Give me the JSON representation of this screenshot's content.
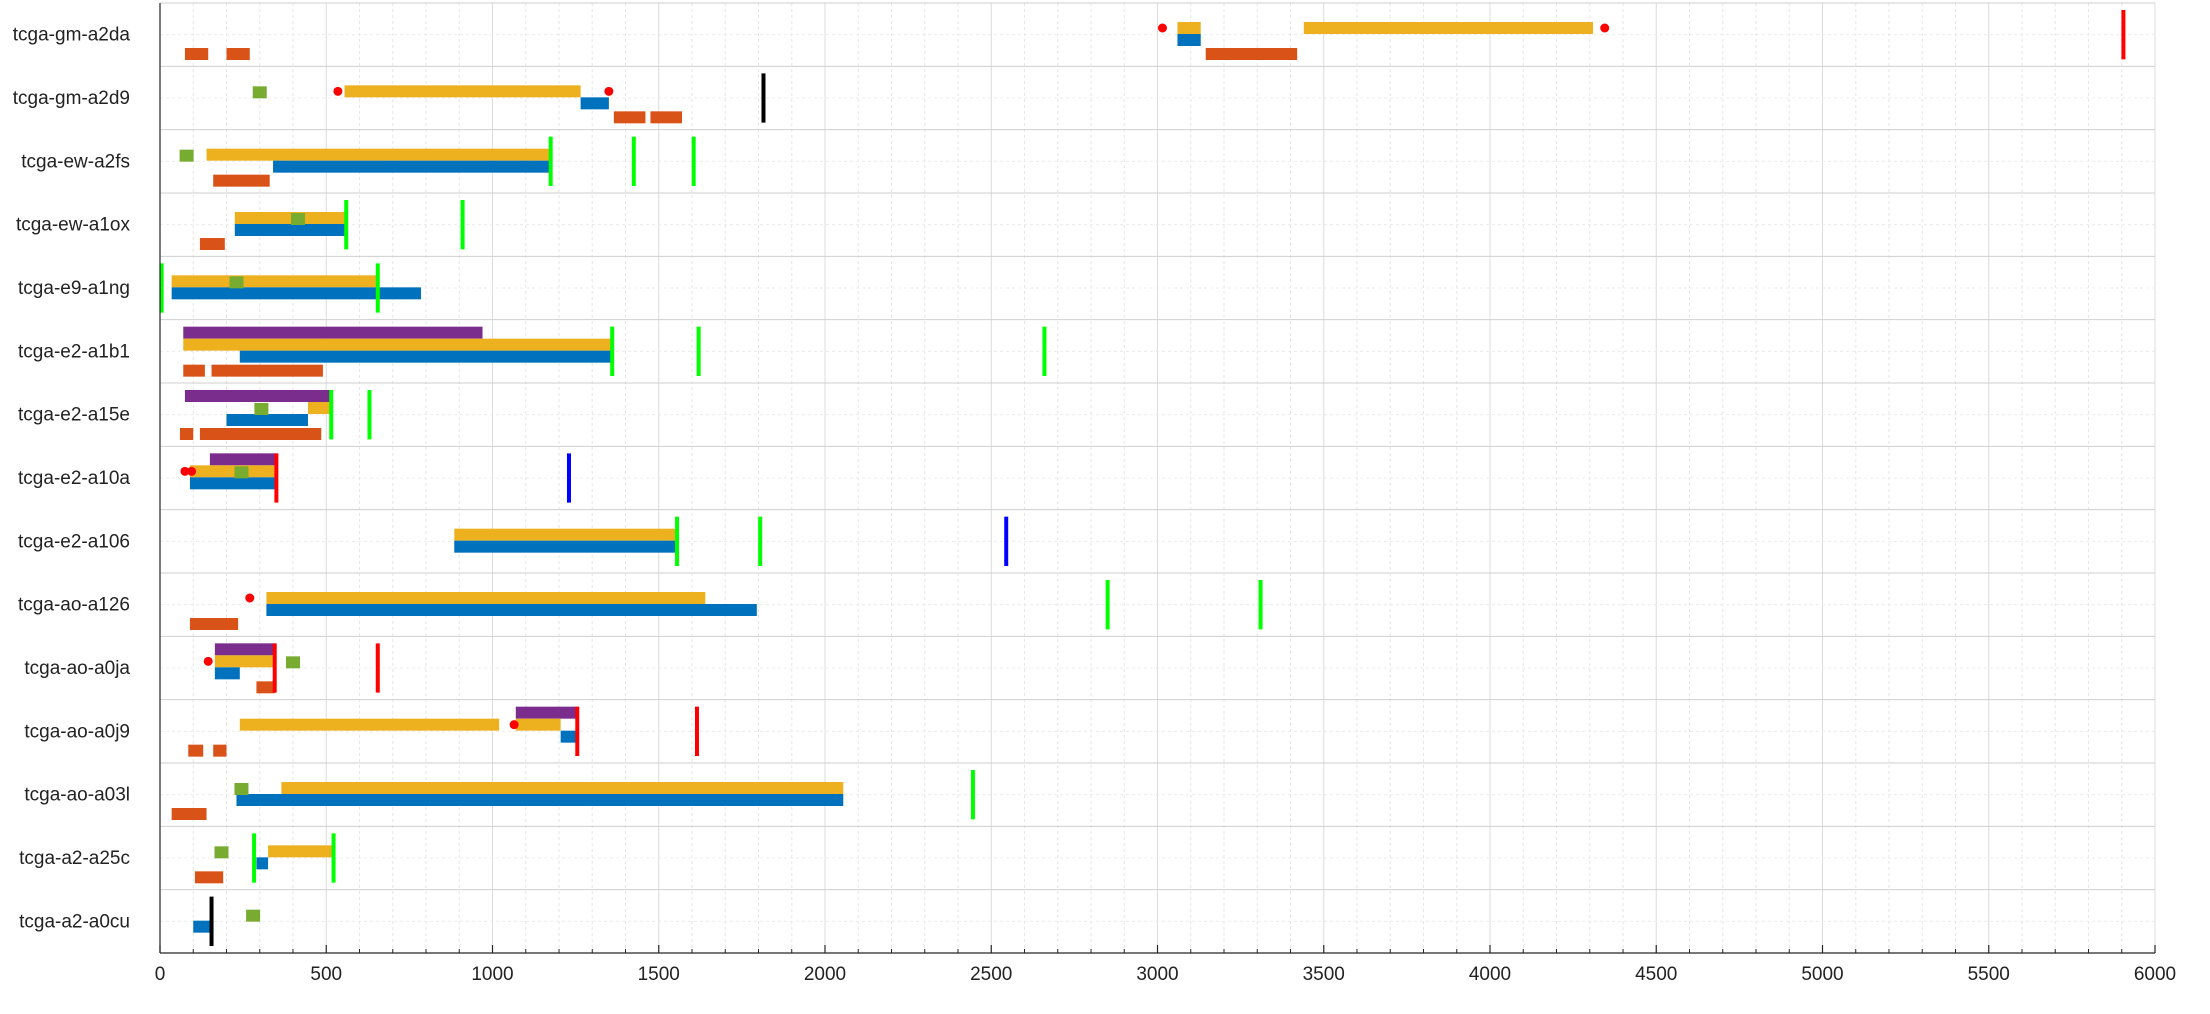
{
  "chart_data": {
    "type": "timeline",
    "title": "",
    "xlabel": "",
    "ylabel": "",
    "xlim": [
      0,
      6000
    ],
    "xticks": [
      0,
      500,
      1000,
      1500,
      2000,
      2500,
      3000,
      3500,
      4000,
      4500,
      5000,
      5500,
      6000
    ],
    "xtick_labels": [
      "0",
      "500",
      "1000",
      "1500",
      "2000",
      "2500",
      "3000",
      "3500",
      "4000",
      "4500",
      "5000",
      "5500",
      "6000"
    ],
    "grid": true,
    "legend": "none",
    "colors": {
      "purple": "#7b2d8e",
      "yellow": "#edb120",
      "blue": "#0072bd",
      "orange": "#d95319",
      "green_square": "#77ac30",
      "green_line": "#00ff00",
      "red_line": "#ff0000",
      "blue_line": "#0000ff",
      "black_line": "#000000",
      "red_dot": "#ff0000"
    },
    "rows": [
      {
        "label": "tcga-gm-a2da",
        "bars": [
          {
            "track": "yellow",
            "start": 3060,
            "end": 3130
          },
          {
            "track": "yellow",
            "start": 3440,
            "end": 4310
          },
          {
            "track": "blue",
            "start": 3060,
            "end": 3130
          },
          {
            "track": "orange",
            "start": 75,
            "end": 145
          },
          {
            "track": "orange",
            "start": 200,
            "end": 270
          },
          {
            "track": "orange",
            "start": 3145,
            "end": 3420
          }
        ],
        "markers": [
          {
            "kind": "dot",
            "x": 3015
          },
          {
            "kind": "dot",
            "x": 4345
          },
          {
            "kind": "red",
            "x": 5905
          }
        ]
      },
      {
        "label": "tcga-gm-a2d9",
        "bars": [
          {
            "track": "yellow",
            "start": 555,
            "end": 1265
          },
          {
            "track": "blue",
            "start": 1265,
            "end": 1350
          },
          {
            "track": "orange",
            "start": 1365,
            "end": 1460
          },
          {
            "track": "orange",
            "start": 1475,
            "end": 1570
          }
        ],
        "markers": [
          {
            "kind": "square",
            "x": 300
          },
          {
            "kind": "dot",
            "x": 535
          },
          {
            "kind": "dot",
            "x": 1350
          },
          {
            "kind": "black",
            "x": 1815
          }
        ]
      },
      {
        "label": "tcga-ew-a2fs",
        "bars": [
          {
            "track": "yellow",
            "start": 140,
            "end": 1170
          },
          {
            "track": "blue",
            "start": 340,
            "end": 1170
          },
          {
            "track": "orange",
            "start": 160,
            "end": 330
          }
        ],
        "markers": [
          {
            "kind": "square",
            "x": 80
          },
          {
            "kind": "green",
            "x": 1175
          },
          {
            "kind": "green",
            "x": 1425
          },
          {
            "kind": "green",
            "x": 1605
          }
        ]
      },
      {
        "label": "tcga-ew-a1ox",
        "bars": [
          {
            "track": "yellow",
            "start": 225,
            "end": 555
          },
          {
            "track": "blue",
            "start": 225,
            "end": 555
          },
          {
            "track": "orange",
            "start": 120,
            "end": 195
          }
        ],
        "markers": [
          {
            "kind": "square",
            "x": 415
          },
          {
            "kind": "green",
            "x": 560
          },
          {
            "kind": "green",
            "x": 910
          }
        ]
      },
      {
        "label": "tcga-e9-a1ng",
        "bars": [
          {
            "track": "yellow",
            "start": 35,
            "end": 650
          },
          {
            "track": "blue",
            "start": 35,
            "end": 785
          }
        ],
        "markers": [
          {
            "kind": "square",
            "x": 230
          },
          {
            "kind": "green",
            "x": 5
          },
          {
            "kind": "green",
            "x": 655
          }
        ]
      },
      {
        "label": "tcga-e2-a1b1",
        "bars": [
          {
            "track": "purple",
            "start": 70,
            "end": 970
          },
          {
            "track": "yellow",
            "start": 70,
            "end": 1355
          },
          {
            "track": "blue",
            "start": 240,
            "end": 1355
          },
          {
            "track": "orange",
            "start": 70,
            "end": 135
          },
          {
            "track": "orange",
            "start": 155,
            "end": 490
          }
        ],
        "markers": [
          {
            "kind": "green",
            "x": 1360
          },
          {
            "kind": "green",
            "x": 1620
          },
          {
            "kind": "green",
            "x": 2660
          }
        ]
      },
      {
        "label": "tcga-e2-a15e",
        "bars": [
          {
            "track": "purple",
            "start": 75,
            "end": 510
          },
          {
            "track": "yellow",
            "start": 445,
            "end": 510
          },
          {
            "track": "blue",
            "start": 200,
            "end": 445
          },
          {
            "track": "orange",
            "start": 60,
            "end": 100
          },
          {
            "track": "orange",
            "start": 120,
            "end": 485
          }
        ],
        "markers": [
          {
            "kind": "square",
            "x": 305
          },
          {
            "kind": "green",
            "x": 515
          },
          {
            "kind": "green",
            "x": 630
          }
        ]
      },
      {
        "label": "tcga-e2-a10a",
        "bars": [
          {
            "track": "purple",
            "start": 150,
            "end": 350
          },
          {
            "track": "yellow",
            "start": 90,
            "end": 350
          },
          {
            "track": "blue",
            "start": 90,
            "end": 350
          }
        ],
        "markers": [
          {
            "kind": "square",
            "x": 245
          },
          {
            "kind": "dot",
            "x": 75
          },
          {
            "kind": "dot",
            "x": 95
          },
          {
            "kind": "red",
            "x": 350
          },
          {
            "kind": "blue",
            "x": 1230
          }
        ]
      },
      {
        "label": "tcga-e2-a106",
        "bars": [
          {
            "track": "yellow",
            "start": 885,
            "end": 1550
          },
          {
            "track": "blue",
            "start": 885,
            "end": 1550
          }
        ],
        "markers": [
          {
            "kind": "green",
            "x": 1555
          },
          {
            "kind": "green",
            "x": 1805
          },
          {
            "kind": "blue",
            "x": 2545
          }
        ]
      },
      {
        "label": "tcga-ao-a126",
        "bars": [
          {
            "track": "yellow",
            "start": 320,
            "end": 1640
          },
          {
            "track": "blue",
            "start": 320,
            "end": 1795
          },
          {
            "track": "orange",
            "start": 90,
            "end": 235
          }
        ],
        "markers": [
          {
            "kind": "dot",
            "x": 270
          },
          {
            "kind": "green",
            "x": 2850
          },
          {
            "kind": "green",
            "x": 3310
          }
        ]
      },
      {
        "label": "tcga-ao-a0ja",
        "bars": [
          {
            "track": "purple",
            "start": 165,
            "end": 345
          },
          {
            "track": "yellow",
            "start": 165,
            "end": 340
          },
          {
            "track": "blue",
            "start": 165,
            "end": 240
          },
          {
            "track": "orange",
            "start": 290,
            "end": 345
          }
        ],
        "markers": [
          {
            "kind": "square",
            "x": 400
          },
          {
            "kind": "dot",
            "x": 145
          },
          {
            "kind": "red",
            "x": 345
          },
          {
            "kind": "red",
            "x": 655
          }
        ]
      },
      {
        "label": "tcga-ao-a0j9",
        "bars": [
          {
            "track": "purple",
            "start": 1070,
            "end": 1255
          },
          {
            "track": "yellow",
            "start": 240,
            "end": 1020
          },
          {
            "track": "yellow",
            "start": 1070,
            "end": 1205
          },
          {
            "track": "blue",
            "start": 1205,
            "end": 1255
          },
          {
            "track": "orange",
            "start": 85,
            "end": 130
          },
          {
            "track": "orange",
            "start": 160,
            "end": 200
          }
        ],
        "markers": [
          {
            "kind": "dot",
            "x": 1065
          },
          {
            "kind": "red",
            "x": 1255
          },
          {
            "kind": "red",
            "x": 1615
          }
        ]
      },
      {
        "label": "tcga-ao-a03l",
        "bars": [
          {
            "track": "yellow",
            "start": 365,
            "end": 2055
          },
          {
            "track": "blue",
            "start": 230,
            "end": 2055
          },
          {
            "track": "orange",
            "start": 35,
            "end": 140
          }
        ],
        "markers": [
          {
            "kind": "square",
            "x": 245
          },
          {
            "kind": "green",
            "x": 2445
          }
        ]
      },
      {
        "label": "tcga-a2-a25c",
        "bars": [
          {
            "track": "yellow",
            "start": 325,
            "end": 520
          },
          {
            "track": "blue",
            "start": 290,
            "end": 325
          },
          {
            "track": "orange",
            "start": 105,
            "end": 190
          }
        ],
        "markers": [
          {
            "kind": "square",
            "x": 185
          },
          {
            "kind": "green",
            "x": 283
          },
          {
            "kind": "green",
            "x": 522
          }
        ]
      },
      {
        "label": "tcga-a2-a0cu",
        "bars": [
          {
            "track": "blue",
            "start": 100,
            "end": 155
          }
        ],
        "markers": [
          {
            "kind": "square",
            "x": 280
          },
          {
            "kind": "black",
            "x": 155
          }
        ]
      }
    ]
  }
}
